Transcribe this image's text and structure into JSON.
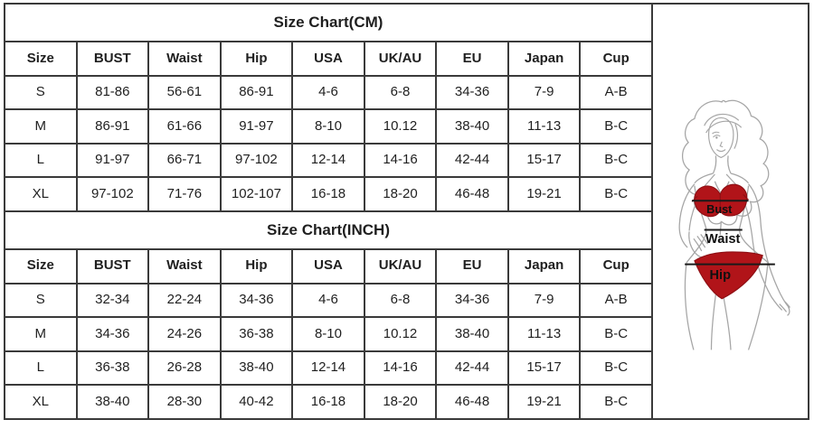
{
  "page": {
    "background": "#ffffff",
    "border_color": "#3a3a3a"
  },
  "tables": [
    {
      "title": "Size Chart(CM)",
      "columns": [
        "Size",
        "BUST",
        "Waist",
        "Hip",
        "USA",
        "UK/AU",
        "EU",
        "Japan",
        "Cup"
      ],
      "rows": [
        [
          "S",
          "81-86",
          "56-61",
          "86-91",
          "4-6",
          "6-8",
          "34-36",
          "7-9",
          "A-B"
        ],
        [
          "M",
          "86-91",
          "61-66",
          "91-97",
          "8-10",
          "10.12",
          "38-40",
          "11-13",
          "B-C"
        ],
        [
          "L",
          "91-97",
          "66-71",
          "97-102",
          "12-14",
          "14-16",
          "42-44",
          "15-17",
          "B-C"
        ],
        [
          "XL",
          "97-102",
          "71-76",
          "102-107",
          "16-18",
          "18-20",
          "46-48",
          "19-21",
          "B-C"
        ]
      ]
    },
    {
      "title": "Size Chart(INCH)",
      "columns": [
        "Size",
        "BUST",
        "Waist",
        "Hip",
        "USA",
        "UK/AU",
        "EU",
        "Japan",
        "Cup"
      ],
      "rows": [
        [
          "S",
          "32-34",
          "22-24",
          "34-36",
          "4-6",
          "6-8",
          "34-36",
          "7-9",
          "A-B"
        ],
        [
          "M",
          "34-36",
          "24-26",
          "36-38",
          "8-10",
          "10.12",
          "38-40",
          "11-13",
          "B-C"
        ],
        [
          "L",
          "36-38",
          "26-28",
          "38-40",
          "12-14",
          "14-16",
          "42-44",
          "15-17",
          "B-C"
        ],
        [
          "XL",
          "38-40",
          "28-30",
          "40-42",
          "16-18",
          "18-20",
          "46-48",
          "19-21",
          "B-C"
        ]
      ]
    }
  ],
  "figure": {
    "labels": {
      "bust": "Bust",
      "waist": "Waist",
      "hip": "Hip"
    },
    "colors": {
      "bikini": "#b11419",
      "bikini_outline": "#8e0f14",
      "line_art": "#a6a6a6",
      "measure_line": "#1a1a1a"
    }
  }
}
